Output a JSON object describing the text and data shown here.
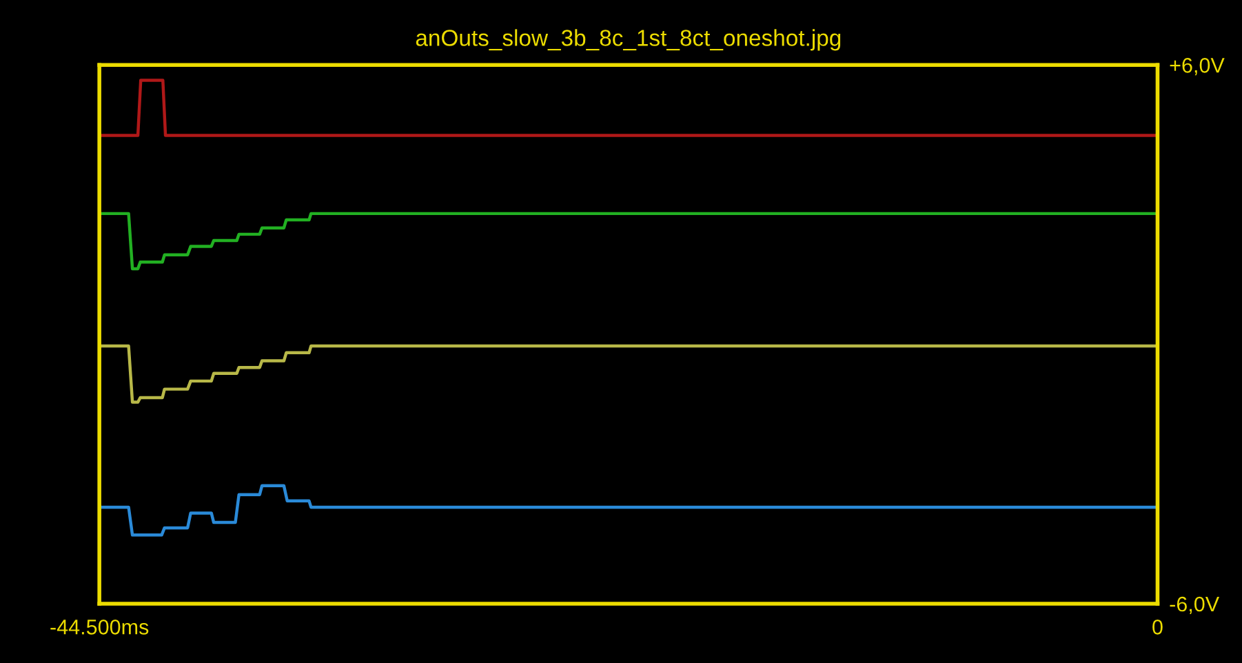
{
  "chart_data": {
    "type": "line",
    "title": "anOuts_slow_3b_8c_1st_8ct_oneshot.jpg",
    "series": [
      {
        "color": "#b01818",
        "x": [
          -44500,
          -42880,
          -42760,
          -41830,
          -41720,
          0
        ],
        "values": [
          4.43,
          4.43,
          5.66,
          5.66,
          4.43,
          4.43
        ]
      },
      {
        "color": "#22b022",
        "x": [
          -44500,
          -43270,
          -43110,
          -42880,
          -42780,
          -41850,
          -41760,
          -40790,
          -40660,
          -39790,
          -39690,
          -38720,
          -38630,
          -37760,
          -37660,
          -36740,
          -36640,
          -35680,
          -35600,
          0
        ],
        "values": [
          2.69,
          2.69,
          1.46,
          1.46,
          1.61,
          1.61,
          1.77,
          1.77,
          1.96,
          1.96,
          2.09,
          2.09,
          2.23,
          2.23,
          2.37,
          2.37,
          2.55,
          2.55,
          2.69,
          2.69
        ]
      },
      {
        "color": "#b8b848",
        "x": [
          -44500,
          -43270,
          -43110,
          -42880,
          -42780,
          -41850,
          -41760,
          -40790,
          -40660,
          -39790,
          -39690,
          -38720,
          -38630,
          -37760,
          -37660,
          -36740,
          -36640,
          -35680,
          -35600,
          0
        ],
        "values": [
          -0.26,
          -0.26,
          -1.51,
          -1.51,
          -1.41,
          -1.41,
          -1.22,
          -1.22,
          -1.04,
          -1.04,
          -0.87,
          -0.87,
          -0.74,
          -0.74,
          -0.59,
          -0.59,
          -0.41,
          -0.41,
          -0.26,
          -0.26
        ]
      },
      {
        "color": "#2a8ad8",
        "x": [
          -44500,
          -43270,
          -43110,
          -41880,
          -41760,
          -40790,
          -40660,
          -39790,
          -39690,
          -38780,
          -38630,
          -37760,
          -37660,
          -36740,
          -36600,
          -35680,
          -35600,
          0
        ],
        "values": [
          -3.85,
          -3.85,
          -4.47,
          -4.47,
          -4.31,
          -4.31,
          -3.98,
          -3.98,
          -4.19,
          -4.19,
          -3.57,
          -3.57,
          -3.37,
          -3.37,
          -3.71,
          -3.71,
          -3.85,
          -3.85
        ]
      }
    ],
    "xlim": [
      -44500,
      0
    ],
    "xticks": [
      {
        "value": -44500,
        "label": "-44.500ms"
      },
      0
    ],
    "ylim": [
      -6,
      6
    ],
    "yticks": [
      {
        "value": 6,
        "label": "+6,0V"
      },
      {
        "value": -6,
        "label": "-6,0V"
      }
    ],
    "line_style": "solid"
  }
}
